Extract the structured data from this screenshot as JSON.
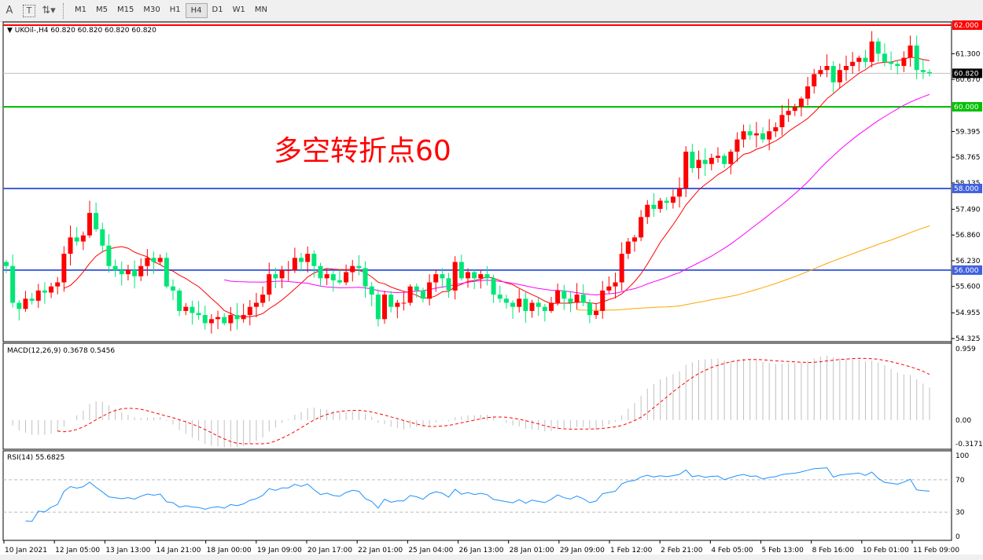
{
  "toolbar": {
    "icons": [
      "text-A-icon",
      "text-box-icon",
      "arrows-icon"
    ],
    "text_a": "A",
    "text_t": "T",
    "arrows": "⇅▾",
    "timeframes": [
      "M1",
      "M5",
      "M15",
      "M30",
      "H1",
      "H4",
      "D1",
      "W1",
      "MN"
    ],
    "active_timeframe": "H4"
  },
  "chart": {
    "header": "UKOil-,H4  60.820 60.820 60.820 60.820",
    "annotation": "多空转折点60",
    "colors": {
      "bull": "#ff0000",
      "bear": "#00e676",
      "ma_fast": "#ff0000",
      "ma_mid": "#ff00ff",
      "ma_slow": "#ffa500",
      "macd_hist": "#c0c0c0",
      "macd_signal": "#ff0000",
      "rsi": "#1e90ff",
      "level_red": "#ff0000",
      "level_green": "#00c000",
      "level_blue": "#4060e0"
    },
    "price_axis": [
      "61.300",
      "60.670",
      "59.395",
      "58.765",
      "58.135",
      "57.490",
      "56.860",
      "56.230",
      "55.600",
      "54.955",
      "54.325"
    ],
    "price_range": [
      54.325,
      62.0
    ],
    "levels": [
      {
        "price": 62.0,
        "label": "62.000",
        "color": "#ff0000"
      },
      {
        "price": 60.0,
        "label": "60.000",
        "color": "#00c000"
      },
      {
        "price": 58.0,
        "label": "58.000",
        "color": "#4060e0"
      },
      {
        "price": 56.0,
        "label": "56.000",
        "color": "#4060e0"
      }
    ],
    "current_price": {
      "price": 60.82,
      "label": "60.820"
    },
    "closes": [
      56.1,
      55.2,
      55.05,
      55.3,
      55.25,
      55.5,
      55.45,
      55.6,
      55.7,
      56.4,
      56.8,
      56.7,
      56.85,
      57.4,
      57.0,
      56.6,
      56.1,
      56.0,
      55.9,
      56.0,
      55.85,
      56.1,
      56.3,
      56.2,
      56.3,
      55.6,
      55.5,
      55.0,
      55.1,
      54.95,
      54.9,
      54.7,
      54.8,
      54.85,
      54.7,
      54.9,
      54.8,
      54.9,
      55.1,
      55.2,
      55.4,
      55.9,
      55.8,
      56.0,
      56.0,
      56.3,
      56.2,
      56.4,
      56.1,
      55.8,
      55.9,
      55.75,
      55.7,
      55.95,
      56.1,
      56.05,
      55.6,
      55.4,
      54.8,
      55.4,
      55.1,
      55.2,
      55.2,
      55.6,
      55.5,
      55.3,
      55.7,
      55.9,
      55.8,
      55.5,
      56.2,
      55.8,
      55.95,
      55.8,
      55.9,
      55.8,
      55.4,
      55.3,
      55.2,
      55.1,
      55.3,
      55.0,
      55.2,
      55.1,
      55.0,
      55.2,
      55.5,
      55.3,
      55.2,
      55.4,
      55.2,
      54.9,
      55.0,
      55.5,
      55.6,
      55.7,
      56.4,
      56.7,
      56.8,
      57.3,
      57.6,
      57.5,
      57.7,
      57.65,
      57.8,
      58.0,
      58.9,
      58.5,
      58.7,
      58.6,
      58.75,
      58.8,
      58.6,
      58.9,
      59.2,
      59.4,
      59.3,
      59.35,
      59.2,
      59.4,
      59.5,
      59.8,
      59.9,
      60.0,
      60.2,
      60.5,
      60.8,
      60.9,
      61.0,
      60.6,
      60.9,
      61.0,
      61.1,
      61.2,
      61.1,
      61.6,
      61.3,
      61.1,
      61.05,
      61.0,
      61.2,
      61.5,
      60.9,
      60.85,
      60.82
    ]
  },
  "macd": {
    "header": "MACD(12,26,9) 0.3678 0.5456",
    "axis": [
      "0.959",
      "0.00",
      "-0.3171"
    ],
    "range": [
      -0.3171,
      0.959
    ]
  },
  "rsi": {
    "header": "RSI(14) 55.6825",
    "axis": [
      "100",
      "70",
      "30",
      "0"
    ],
    "levels": [
      70,
      30
    ]
  },
  "time_axis": [
    "10 Jan 2021",
    "12 Jan 05:00",
    "13 Jan 13:00",
    "14 Jan 21:00",
    "18 Jan 00:00",
    "19 Jan 09:00",
    "20 Jan 17:00",
    "22 Jan 01:00",
    "25 Jan 04:00",
    "26 Jan 13:00",
    "28 Jan 01:00",
    "29 Jan 09:00",
    "1 Feb 12:00",
    "2 Feb 21:00",
    "4 Feb 05:00",
    "5 Feb 13:00",
    "8 Feb 16:00",
    "10 Feb 01:00",
    "11 Feb 09:00"
  ]
}
